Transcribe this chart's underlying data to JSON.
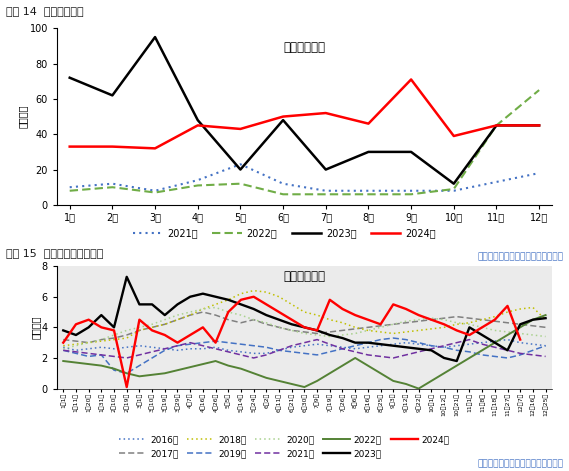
{
  "chart1": {
    "title_label": "图表 14  油菜籽到港量",
    "chart_title": "油菜籽到港量",
    "ylabel": "（万吨）",
    "source": "数据来源：我的农产品网、国元期货",
    "xlabels": [
      "1月",
      "2月",
      "3月",
      "4月",
      "5月",
      "6月",
      "7月",
      "8月",
      "9月",
      "10月",
      "11月",
      "12月"
    ],
    "ylim": [
      0,
      100
    ],
    "yticks": [
      0,
      20,
      40,
      60,
      80,
      100
    ],
    "series": [
      {
        "label": "2021年",
        "values": [
          10,
          12,
          8,
          14,
          23,
          12,
          8,
          8,
          8,
          8,
          13,
          18
        ],
        "color": "#4472c4",
        "linestyle": "dotted",
        "linewidth": 1.5
      },
      {
        "label": "2022年",
        "values": [
          8,
          10,
          7,
          11,
          12,
          6,
          6,
          6,
          6,
          9,
          45,
          65
        ],
        "color": "#70ad47",
        "linestyle": "dashed",
        "linewidth": 1.5
      },
      {
        "label": "2023年",
        "values": [
          72,
          62,
          95,
          48,
          20,
          48,
          20,
          30,
          30,
          12,
          45,
          45
        ],
        "color": "#000000",
        "linestyle": "solid",
        "linewidth": 1.8
      },
      {
        "label": "2024年",
        "values": [
          33,
          33,
          32,
          45,
          43,
          50,
          52,
          46,
          71,
          39,
          45,
          45
        ],
        "color": "#ff0000",
        "linestyle": "solid",
        "linewidth": 1.8
      }
    ]
  },
  "chart2": {
    "title_label": "图表 15  国内菜油产量及库存",
    "chart_title": "国内菜油产量",
    "ylabel": "（万吨）",
    "source": "数据来源：我的农产品网、国元期货",
    "ylim": [
      0,
      8
    ],
    "yticks": [
      0,
      2,
      4,
      6,
      8
    ],
    "xlabels": [
      "1月1日",
      "1月11日",
      "1月20日",
      "1月31日",
      "2月10日",
      "2月19日",
      "3月1日",
      "3月10日",
      "3月19日",
      "3月29日",
      "4月7日",
      "4月16日",
      "4月26日",
      "5月5日",
      "5月14日",
      "5月24日",
      "6月2日",
      "6月11日",
      "6月21日",
      "6月30日",
      "7月9日",
      "7月19日",
      "7月26日",
      "8月6日",
      "8月16日",
      "8月25日",
      "9月3日",
      "9月12日",
      "9月22日",
      "10月1日",
      "10月12日",
      "10月21日",
      "11月1日",
      "11月8日",
      "11月18日",
      "11月27日",
      "12月7日",
      "12月16日",
      "12月25日"
    ],
    "series": [
      {
        "label": "2016年",
        "values": [
          2.7,
          2.5,
          2.6,
          2.7,
          2.6,
          2.7,
          2.8,
          2.7,
          2.6,
          2.5,
          2.6,
          2.6,
          2.7,
          2.5,
          2.4,
          2.3,
          2.3,
          2.5,
          2.7,
          2.8,
          2.9,
          2.8,
          2.7,
          2.6,
          2.7,
          2.8,
          2.9,
          3.0,
          2.9,
          2.8,
          2.7,
          2.8,
          2.9,
          3.0,
          3.1,
          3.2,
          3.0,
          2.9,
          2.8
        ],
        "color": "#4472c4",
        "linestyle": "dotted",
        "linewidth": 1.1
      },
      {
        "label": "2017年",
        "values": [
          3.2,
          3.1,
          3.0,
          3.2,
          3.3,
          3.5,
          3.8,
          4.0,
          4.2,
          4.5,
          4.8,
          5.0,
          4.8,
          4.5,
          4.3,
          4.5,
          4.2,
          4.0,
          3.8,
          3.7,
          3.6,
          3.7,
          3.8,
          3.9,
          4.0,
          4.1,
          4.2,
          4.3,
          4.4,
          4.5,
          4.6,
          4.7,
          4.6,
          4.5,
          4.4,
          4.3,
          4.2,
          4.1,
          4.0
        ],
        "color": "#808080",
        "linestyle": "dashed",
        "linewidth": 1.1
      },
      {
        "label": "2018年",
        "values": [
          2.8,
          2.9,
          3.0,
          3.1,
          3.2,
          3.3,
          3.8,
          4.0,
          4.2,
          4.5,
          4.8,
          5.2,
          5.5,
          5.8,
          6.2,
          6.4,
          6.3,
          6.0,
          5.5,
          5.0,
          4.8,
          4.5,
          4.3,
          4.0,
          3.8,
          3.7,
          3.6,
          3.7,
          3.8,
          3.9,
          4.0,
          4.2,
          4.3,
          4.5,
          4.7,
          5.0,
          5.2,
          5.3,
          4.5
        ],
        "color": "#bfbf00",
        "linestyle": "dotted",
        "linewidth": 1.1
      },
      {
        "label": "2019年",
        "values": [
          2.5,
          2.3,
          2.1,
          2.2,
          1.2,
          1.0,
          1.5,
          2.0,
          2.5,
          2.8,
          2.9,
          3.0,
          3.1,
          3.0,
          2.9,
          2.8,
          2.7,
          2.5,
          2.4,
          2.3,
          2.2,
          2.4,
          2.6,
          2.8,
          3.0,
          3.2,
          3.3,
          3.2,
          3.0,
          2.8,
          2.7,
          2.5,
          2.4,
          2.2,
          2.1,
          2.0,
          2.2,
          2.5,
          2.8
        ],
        "color": "#4472c4",
        "linestyle": "dashed",
        "linewidth": 1.1
      },
      {
        "label": "2020年",
        "values": [
          2.6,
          2.8,
          3.0,
          3.2,
          3.5,
          3.8,
          4.0,
          4.2,
          4.5,
          4.8,
          5.0,
          5.2,
          5.3,
          5.0,
          4.8,
          4.5,
          4.3,
          4.0,
          3.8,
          3.6,
          3.5,
          3.4,
          3.5,
          3.6,
          3.8,
          4.0,
          4.2,
          4.4,
          4.5,
          4.6,
          4.5,
          4.3,
          4.2,
          4.0,
          3.8,
          3.7,
          3.6,
          3.5,
          3.4
        ],
        "color": "#a9d18e",
        "linestyle": "dotted",
        "linewidth": 1.1
      },
      {
        "label": "2021年",
        "values": [
          2.5,
          2.4,
          2.3,
          2.2,
          2.1,
          2.0,
          2.2,
          2.4,
          2.6,
          2.8,
          3.0,
          2.8,
          2.6,
          2.4,
          2.2,
          2.0,
          2.2,
          2.5,
          2.8,
          3.0,
          3.2,
          2.9,
          2.6,
          2.4,
          2.2,
          2.1,
          2.0,
          2.2,
          2.4,
          2.6,
          2.8,
          3.0,
          3.2,
          2.9,
          2.7,
          2.5,
          2.3,
          2.2,
          2.1
        ],
        "color": "#7030a0",
        "linestyle": "dashed",
        "linewidth": 1.1
      },
      {
        "label": "2022年",
        "values": [
          1.8,
          1.7,
          1.6,
          1.5,
          1.3,
          1.0,
          0.8,
          0.9,
          1.0,
          1.2,
          1.4,
          1.6,
          1.8,
          1.5,
          1.3,
          1.0,
          0.7,
          0.5,
          0.3,
          0.1,
          0.5,
          1.0,
          1.5,
          2.0,
          1.5,
          1.0,
          0.5,
          0.3,
          0.0,
          0.5,
          1.0,
          1.5,
          2.0,
          2.5,
          3.0,
          3.5,
          4.0,
          4.5,
          4.8
        ],
        "color": "#548235",
        "linestyle": "solid",
        "linewidth": 1.4
      },
      {
        "label": "2023年",
        "values": [
          3.8,
          3.5,
          4.0,
          4.8,
          4.0,
          7.3,
          5.5,
          5.5,
          4.8,
          5.5,
          6.0,
          6.2,
          6.0,
          5.8,
          5.5,
          5.2,
          4.8,
          4.5,
          4.2,
          4.0,
          3.8,
          3.5,
          3.3,
          3.0,
          3.0,
          2.9,
          2.8,
          2.7,
          2.6,
          2.5,
          2.0,
          1.8,
          4.0,
          3.5,
          3.0,
          2.5,
          4.2,
          4.5,
          4.6
        ],
        "color": "#000000",
        "linestyle": "solid",
        "linewidth": 1.7
      },
      {
        "label": "2024年",
        "values": [
          3.0,
          4.2,
          4.5,
          4.0,
          3.8,
          0.1,
          4.5,
          3.8,
          3.5,
          3.0,
          3.5,
          4.0,
          3.0,
          5.0,
          5.8,
          6.0,
          5.5,
          5.0,
          4.5,
          4.0,
          3.8,
          5.8,
          5.2,
          4.8,
          4.5,
          4.2,
          5.5,
          5.2,
          4.8,
          4.5,
          4.2,
          3.8,
          3.5,
          4.0,
          4.5,
          5.4,
          3.2,
          null,
          null
        ],
        "color": "#ff0000",
        "linestyle": "solid",
        "linewidth": 1.7
      }
    ]
  },
  "line_color": "#4472c4",
  "bg_color": "#ffffff",
  "title_color": "#1f3864",
  "source_color": "#4472c4"
}
